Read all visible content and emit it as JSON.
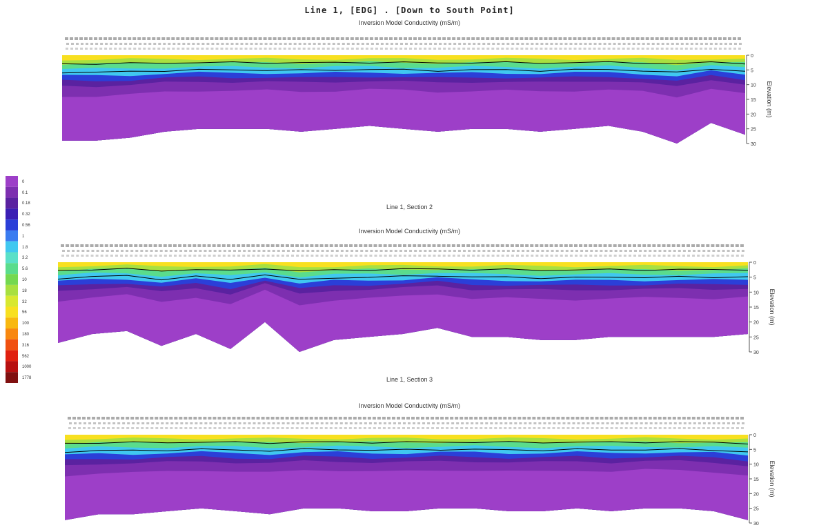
{
  "figure": {
    "title": "Line 1, [EDG] . [Down to South Point]"
  },
  "chart_data": [
    {
      "type": "heatmap",
      "title": "",
      "subtitle": "Inversion Model Conductivity (mS/m)",
      "ylabel": "Elevation (m)",
      "ytick_labels": [
        "0",
        "5",
        "10",
        "15",
        "20",
        "25",
        "30"
      ],
      "ylim": [
        30,
        0
      ],
      "surface_depth_profile": [
        0.0,
        0.05,
        0.1,
        0.15,
        0.2,
        0.25,
        0.3,
        0.35,
        0.4,
        0.45,
        0.5,
        0.55,
        0.6,
        0.65,
        0.7,
        0.75,
        0.8,
        0.85,
        0.9,
        0.95,
        1.0
      ],
      "bottom_depth_profile": [
        29,
        29,
        28,
        26,
        25,
        25,
        25,
        26,
        25,
        24,
        25,
        26,
        25,
        25,
        26,
        25,
        24,
        26,
        30,
        23,
        27
      ]
    },
    {
      "type": "heatmap",
      "title": "Line 1, Section 2",
      "subtitle": "Inversion Model Conductivity (mS/m)",
      "ylabel": "Elevation (m)",
      "ytick_labels": [
        "0",
        "5",
        "10",
        "15",
        "20",
        "25",
        "30"
      ],
      "ylim": [
        30,
        0
      ],
      "bottom_depth_profile": [
        27,
        24,
        23,
        28,
        24,
        29,
        20,
        30,
        26,
        25,
        24,
        22,
        25,
        25,
        26,
        26,
        25,
        25,
        25,
        25,
        24
      ]
    },
    {
      "type": "heatmap",
      "title": "Line 1, Section 3",
      "subtitle": "Inversion Model Conductivity (mS/m)",
      "ylabel": "Elevation (m)",
      "ytick_labels": [
        "0",
        "5",
        "10",
        "15",
        "20",
        "25",
        "30"
      ],
      "ylim": [
        30,
        0
      ],
      "bottom_depth_profile": [
        29,
        27,
        27,
        26,
        25,
        26,
        27,
        25,
        25,
        26,
        26,
        25,
        25,
        26,
        26,
        25,
        26,
        25,
        25,
        26,
        29
      ]
    }
  ],
  "colorbar": {
    "labels": [
      "0",
      "0.1",
      "0.18",
      "0.32",
      "0.56",
      "1",
      "1.8",
      "3.2",
      "5.6",
      "10",
      "18",
      "32",
      "56",
      "100",
      "180",
      "316",
      "562",
      "1000",
      "1778"
    ],
    "colors": [
      "#9d3fc8",
      "#7d2fb0",
      "#5a22a0",
      "#3a1fb4",
      "#2b3fd8",
      "#3a7cf0",
      "#40c8f0",
      "#5ae0c8",
      "#5adc8c",
      "#74d850",
      "#a8e040",
      "#d8e830",
      "#f8e020",
      "#f8b810",
      "#f88810",
      "#f05010",
      "#e02010",
      "#b81010",
      "#801010"
    ]
  }
}
